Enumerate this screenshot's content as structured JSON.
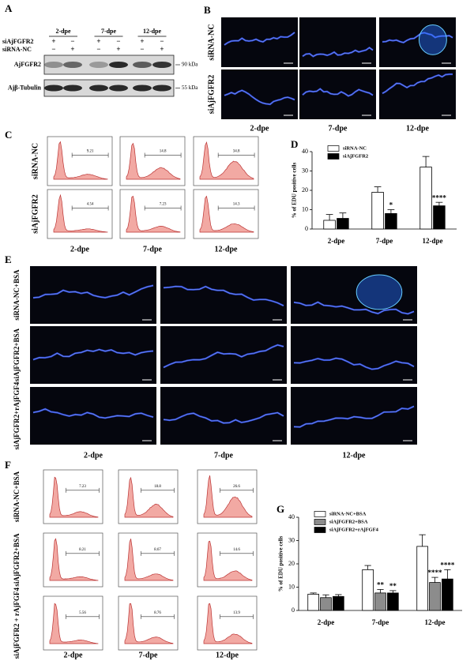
{
  "panel_labels": [
    "A",
    "B",
    "C",
    "D",
    "E",
    "F",
    "G"
  ],
  "blot": {
    "timepoints": [
      "2-dpe",
      "7-dpe",
      "12-dpe"
    ],
    "conditions": [
      "siAjFGFR2",
      "siRNA-NC"
    ],
    "signs": [
      [
        "+",
        "−",
        "+",
        "−",
        "+",
        "−"
      ],
      [
        "−",
        "+",
        "−",
        "+",
        "−",
        "+"
      ]
    ],
    "bands": [
      {
        "name": "AjFGFR2",
        "size": "90 kDa"
      },
      {
        "name": "Ajβ-Tubulin",
        "size": "55 kDa"
      }
    ]
  },
  "imaging_b": {
    "rows": [
      "siRNA-NC",
      "siAjFGFR2"
    ],
    "columns": [
      "2-dpe",
      "7-dpe",
      "12-dpe"
    ]
  },
  "flow_c": {
    "rows": [
      "siRNA-NC",
      "siAjFGFR2"
    ],
    "columns": [
      "2-dpe",
      "7-dpe",
      "12-dpe"
    ],
    "gates": [
      [
        "9.21",
        "14.8",
        "34.8"
      ],
      [
        "4.54",
        "7.23",
        "14.3"
      ]
    ]
  },
  "imaging_e": {
    "rows": [
      "siRNA-NC+BSA",
      "siAjFGFR2+BSA",
      "siAjFGFR2+rAjFGF4"
    ],
    "columns": [
      "2-dpe",
      "7-dpe",
      "12-dpe"
    ]
  },
  "flow_f": {
    "rows": [
      "siRNA-NC+BSA",
      "siAjFGFR2+BSA",
      "siAjFGFR2 + rAjFGF4"
    ],
    "columns": [
      "2-dpe",
      "7-dpe",
      "12-dpe"
    ],
    "gates": [
      [
        "7.23",
        "18.8",
        "26.6"
      ],
      [
        "8.21",
        "8.67",
        "14.6"
      ],
      [
        "5.56",
        "8.76",
        "13.9"
      ]
    ]
  },
  "chart_data": [
    {
      "type": "bar",
      "ylabel": "% of EDU positive cells",
      "categories": [
        "2-dpe",
        "7-dpe",
        "12-dpe"
      ],
      "ylim": [
        0,
        40
      ],
      "yticks": [
        0,
        10,
        20,
        30,
        40
      ],
      "legend": "upper left",
      "series": [
        {
          "name": "siRNA-NC",
          "color": "#ffffff",
          "values": [
            4.5,
            19,
            32
          ],
          "errors": [
            3,
            2.8,
            5.5
          ],
          "annotations": [
            null,
            null,
            null
          ]
        },
        {
          "name": "siAjFGFR2",
          "color": "#000000",
          "values": [
            5.5,
            8,
            12
          ],
          "errors": [
            2.8,
            2,
            1.8
          ],
          "annotations": [
            null,
            "*",
            "****"
          ]
        }
      ]
    },
    {
      "type": "bar",
      "ylabel": "% of EDU positive cells",
      "categories": [
        "2-dpe",
        "7-dpe",
        "12-dpe"
      ],
      "ylim": [
        0,
        40
      ],
      "yticks": [
        0,
        10,
        20,
        30,
        40
      ],
      "legend": "upper left",
      "series": [
        {
          "name": "siRNA-NC+BSA",
          "color": "#ffffff",
          "values": [
            7,
            17.5,
            27.5
          ],
          "errors": [
            0.5,
            1.8,
            5
          ],
          "annotations": [
            null,
            null,
            null
          ]
        },
        {
          "name": "siAjFGFR2+BSA",
          "color": "#8c8c8c",
          "values": [
            5.5,
            7.5,
            12
          ],
          "errors": [
            1.2,
            1.5,
            2.2
          ],
          "annotations": [
            null,
            "**",
            "****"
          ]
        },
        {
          "name": "siAjFGFR2+rAjFGF4",
          "color": "#000000",
          "values": [
            6,
            7.5,
            13.5
          ],
          "errors": [
            0.8,
            1,
            4
          ],
          "annotations": [
            null,
            "**",
            "****"
          ]
        }
      ]
    }
  ]
}
